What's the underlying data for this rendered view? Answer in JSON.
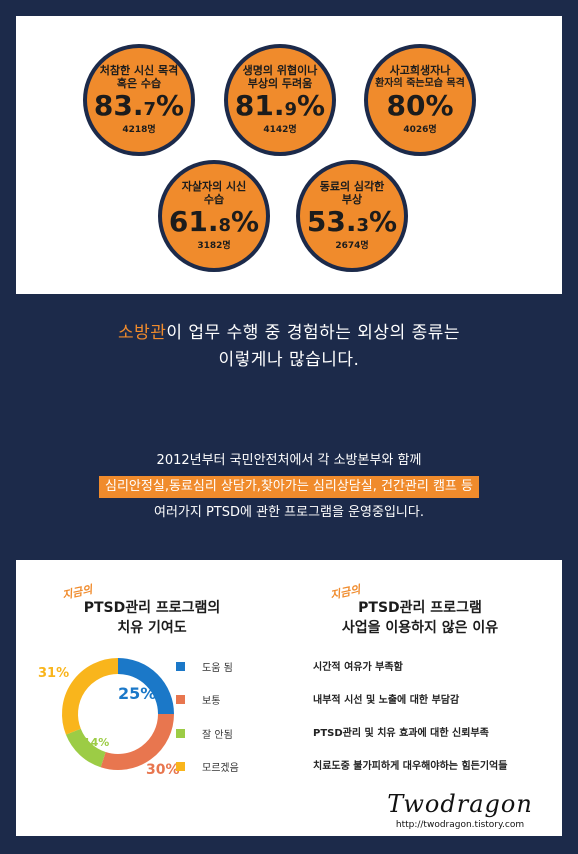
{
  "stats": [
    {
      "label1": "처참한 시신 목격",
      "label2": "혹은 수습",
      "pct_main": "83.",
      "pct_dec": "7",
      "count": "4218명"
    },
    {
      "label1": "생명의 위협이나",
      "label2": "부상의 두려움",
      "pct_main": "81.",
      "pct_dec": "9",
      "count": "4142명"
    },
    {
      "label1": "사고희생자나",
      "label2": "환자의 죽는모습 목격",
      "pct_main": "80",
      "pct_dec": "",
      "count": "4026명"
    },
    {
      "label1": "자살자의 시신",
      "label2": "수습",
      "pct_main": "61.",
      "pct_dec": "8",
      "count": "3182명"
    },
    {
      "label1": "동료의 심각한",
      "label2": "부상",
      "pct_main": "53.",
      "pct_dec": "3",
      "count": "2674명"
    }
  ],
  "headline": {
    "highlight": "소방관",
    "rest1": "이 업무 수행 중 경험하는 외상의 종류는",
    "line2": "이렇게나 많습니다."
  },
  "program": {
    "line1": "2012년부터 국민안전처에서 각 소방본부와 함께",
    "line2": "심리안정실,동료심리 상담가,찾아가는 심리상담실, 건간관리 캠프 등",
    "line3": "여러가지 PTSD에 관한 프로그램을 운영중입니다."
  },
  "left_chart": {
    "badge": "지금의",
    "title1": "PTSD관리 프로그램의",
    "title2": "치유 기여도"
  },
  "right_list": {
    "badge": "지금의",
    "title1": "PTSD관리 프로그램",
    "title2": "사업을 이용하지 않은 이유",
    "reasons": [
      "시간적 여유가 부족함",
      "내부적 시선 및 노출에 대한 부담감",
      "PTSD관리 및 치유 효과에 대한 신뢰부족",
      "치료도중 불가피하게 대우해야하는 힘든기억들"
    ]
  },
  "chart_data": {
    "type": "pie",
    "categories": [
      "도움 됨",
      "보통",
      "잘 안됨",
      "모르겠음"
    ],
    "values": [
      25,
      30,
      14,
      31
    ],
    "labels": [
      "25%",
      "30%",
      "14%",
      "31%"
    ],
    "colors": [
      "#1b78c8",
      "#e8764f",
      "#9ccc45",
      "#f9b51c"
    ]
  },
  "watermark": {
    "name": "Twodragon",
    "url": "http://twodragon.tistory.com"
  }
}
